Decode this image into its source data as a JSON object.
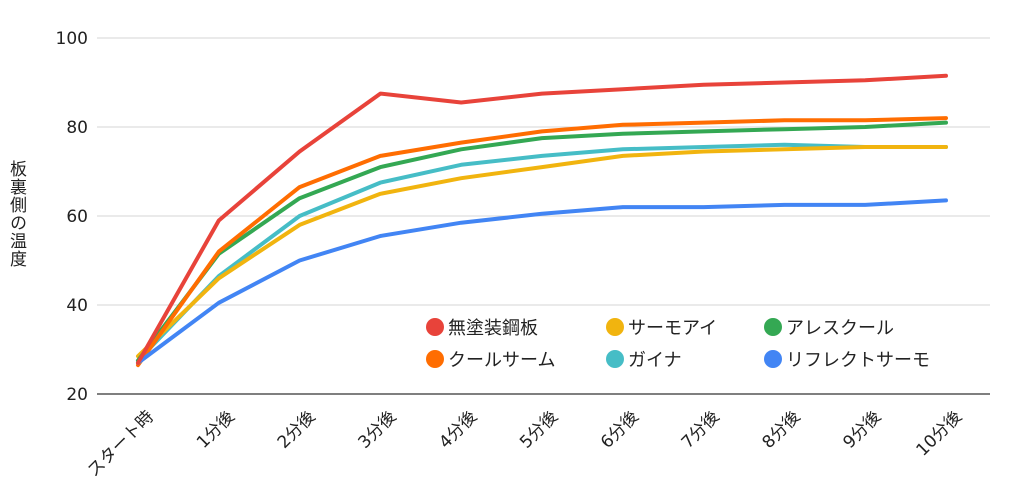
{
  "chart_data": {
    "type": "line",
    "title": "",
    "xlabel": "",
    "ylabel": "板裏側の温度",
    "ylim": [
      20,
      100
    ],
    "yticks": [
      20,
      40,
      60,
      80,
      100
    ],
    "grid": true,
    "legend_position": "bottom-right",
    "categories": [
      "スタート時",
      "1分後",
      "2分後",
      "3分後",
      "4分後",
      "5分後",
      "6分後",
      "7分後",
      "8分後",
      "9分後",
      "10分後"
    ],
    "series": [
      {
        "name": "無塗装鋼板",
        "color": "#e8433a",
        "values": [
          27,
          59,
          74.5,
          87.5,
          85.5,
          87.5,
          88.5,
          89.5,
          90,
          90.5,
          91.5
        ]
      },
      {
        "name": "サーモアイ",
        "color": "#f1b40f",
        "values": [
          28.5,
          46,
          58,
          65,
          68.5,
          71,
          73.5,
          74.5,
          75,
          75.5,
          75.5
        ]
      },
      {
        "name": "アレスクール",
        "color": "#34a853",
        "values": [
          27.5,
          51.5,
          64,
          71,
          75,
          77.5,
          78.5,
          79,
          79.5,
          80,
          81
        ]
      },
      {
        "name": "クールサーム",
        "color": "#ff6d01",
        "values": [
          26.5,
          52,
          66.5,
          73.5,
          76.5,
          79,
          80.5,
          81,
          81.5,
          81.5,
          82
        ]
      },
      {
        "name": "ガイナ",
        "color": "#46bdc6",
        "values": [
          27.5,
          46.5,
          60,
          67.5,
          71.5,
          73.5,
          75,
          75.5,
          76,
          75.5,
          75.5
        ]
      },
      {
        "name": "リフレクトサーモ",
        "color": "#4285f4",
        "values": [
          27,
          40.5,
          50,
          55.5,
          58.5,
          60.5,
          62,
          62,
          62.5,
          62.5,
          63.5
        ]
      }
    ]
  }
}
